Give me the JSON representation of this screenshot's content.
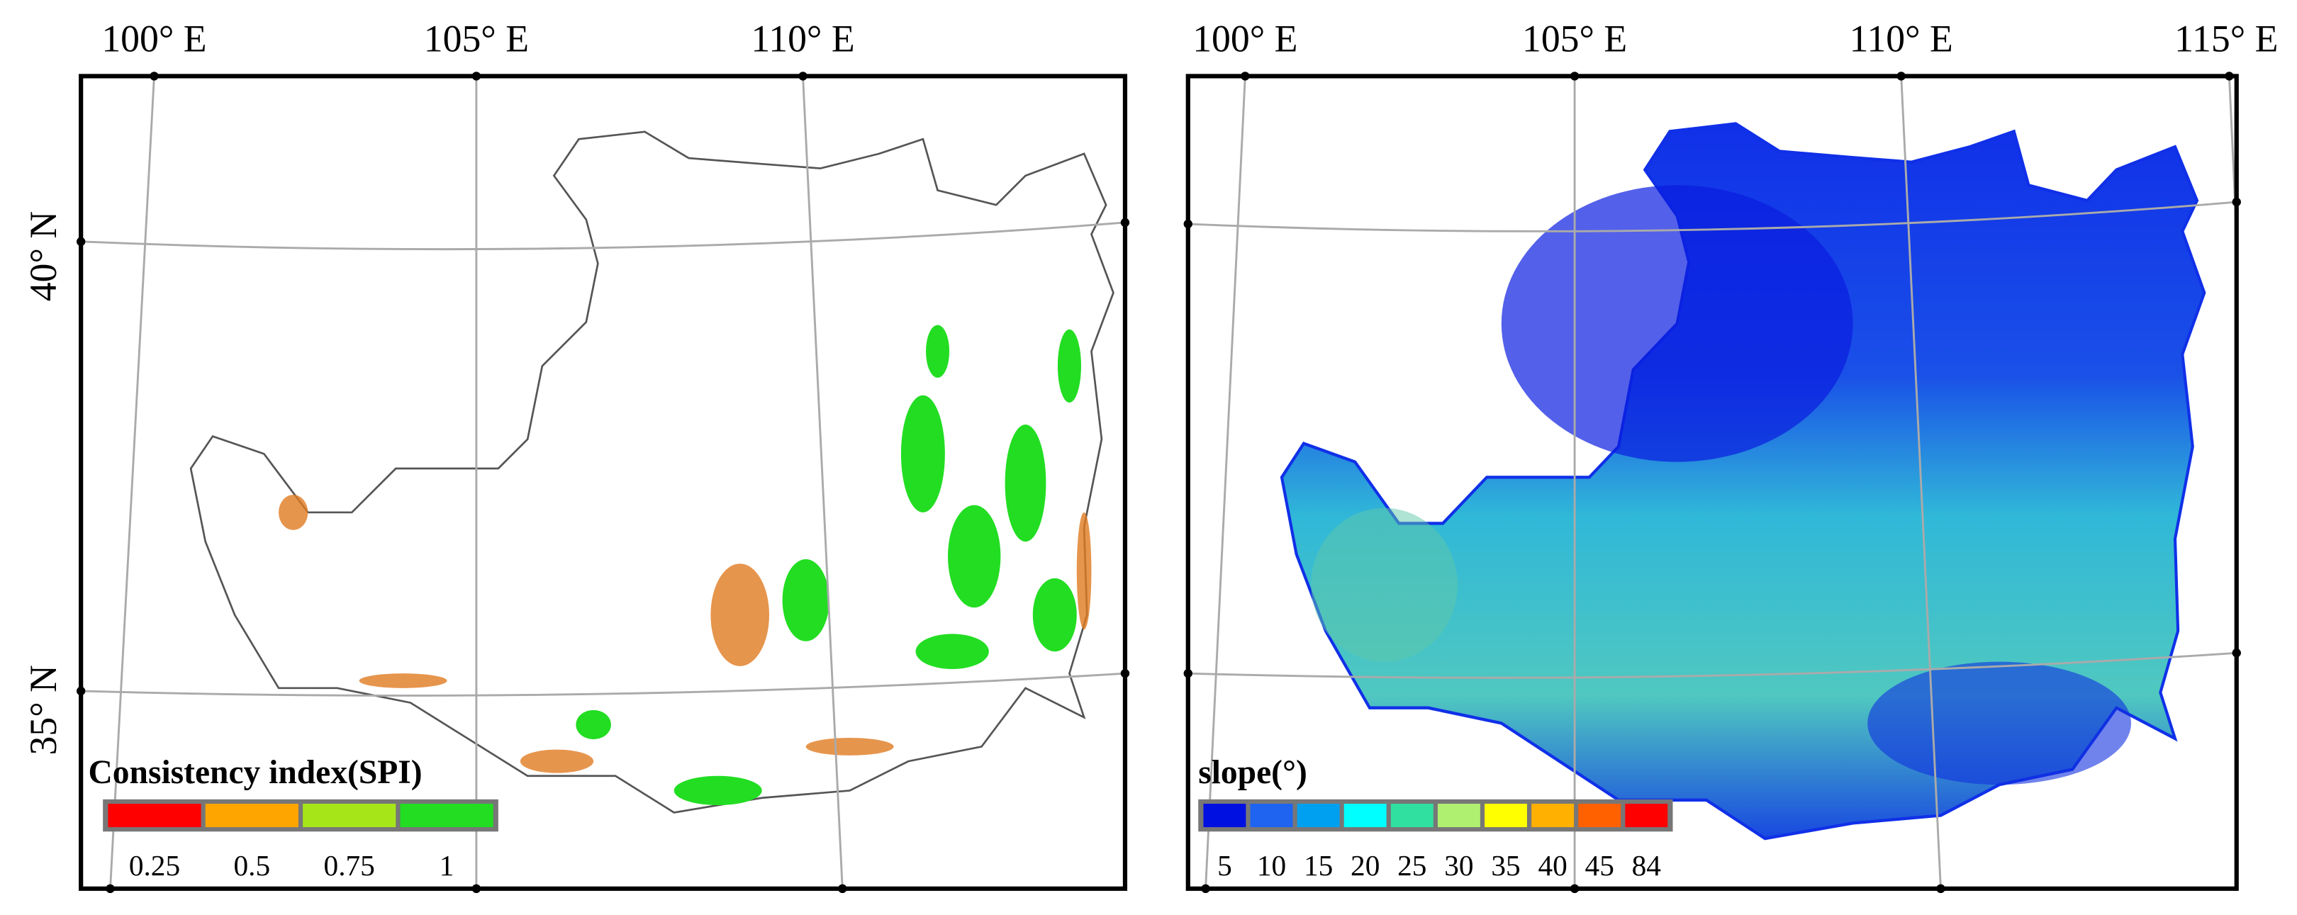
{
  "panels": [
    {
      "lon_labels": [
        "100° E",
        "105° E",
        "110° E"
      ],
      "lat_labels": [
        "40° N",
        "35° N"
      ],
      "legend": {
        "title": "Consistency index(SPI)",
        "colors": [
          "#ff0000",
          "#ffa500",
          "#a6e619",
          "#22dd22"
        ],
        "labels": [
          "0.25",
          "0.5",
          "0.75",
          "1"
        ]
      }
    },
    {
      "lon_labels": [
        "100° E",
        "105° E",
        "110° E",
        "115° E"
      ],
      "legend": {
        "title": "slope(°)",
        "colors": [
          "#0010e0",
          "#1e64f0",
          "#00a0f0",
          "#00ffff",
          "#30e0a0",
          "#b0f070",
          "#ffff00",
          "#ffb000",
          "#ff6000",
          "#ff0000"
        ],
        "labels": [
          "5",
          "10",
          "15",
          "20",
          "25",
          "30",
          "35",
          "40",
          "45",
          "84"
        ]
      }
    }
  ]
}
